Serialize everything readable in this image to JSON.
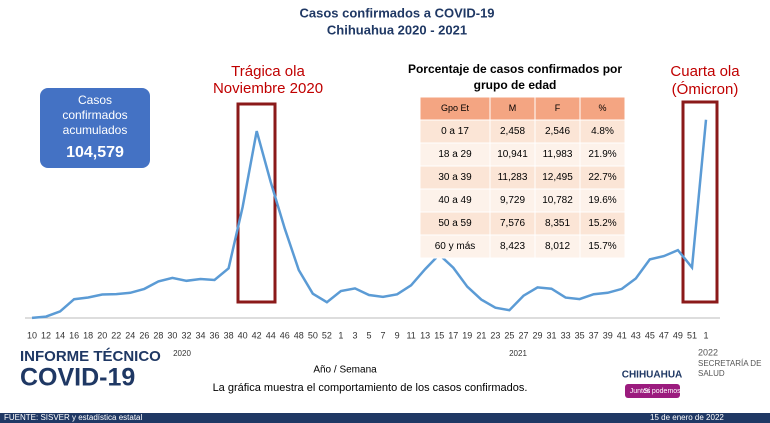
{
  "chart_data": {
    "type": "line",
    "title": "Casos confirmados a COVID-19",
    "subtitle": "Chihuahua 2020 - 2021",
    "x_label": "Año / Semana",
    "year_labels": [
      "2020",
      "2021"
    ],
    "categories": [
      "10",
      "12",
      "14",
      "16",
      "18",
      "20",
      "22",
      "24",
      "26",
      "28",
      "30",
      "32",
      "34",
      "36",
      "38",
      "40",
      "42",
      "44",
      "46",
      "48",
      "50",
      "52",
      "1",
      "3",
      "5",
      "7",
      "9",
      "11",
      "13",
      "15",
      "17",
      "19",
      "21",
      "23",
      "25",
      "27",
      "29",
      "31",
      "33",
      "35",
      "37",
      "39",
      "41",
      "43",
      "45",
      "47",
      "49",
      "51",
      "1"
    ],
    "series": [
      {
        "color": "#5b9bd5",
        "values": [
          2,
          36,
          170,
          485,
          528,
          604,
          615,
          650,
          750,
          941,
          1031,
          957,
          1003,
          979,
          1280,
          2855,
          4811,
          3500,
          2299,
          1233,
          625,
          408,
          694,
          762,
          593,
          542,
          611,
          842,
          1260,
          1633,
          1294,
          805,
          473,
          266,
          200,
          573,
          787,
          754,
          524,
          487,
          612,
          650,
          750,
          1016,
          1508,
          1594,
          1749,
          1300,
          5102
        ]
      }
    ],
    "ylim": [
      0,
      5200
    ],
    "annotations": [
      [
        "Trágica ola",
        "Noviembre 2020"
      ],
      [
        "Cuarta ola",
        "(Ómicron)"
      ]
    ]
  },
  "summary_box": {
    "label": [
      "Casos",
      "confirmados",
      "acumulados"
    ],
    "value": "104,579"
  },
  "table": {
    "title": [
      "Porcentaje de casos confirmados por",
      "grupo de edad"
    ],
    "header": [
      "Gpo Et",
      "M",
      "F",
      "%"
    ],
    "rows": [
      [
        "0 a 17",
        "2,458",
        "2,546",
        "4.8%"
      ],
      [
        "18 a 29",
        "10,941",
        "11,983",
        "21.9%"
      ],
      [
        "30 a 39",
        "11,283",
        "12,495",
        "22.7%"
      ],
      [
        "40 a 49",
        "9,729",
        "10,782",
        "19.6%"
      ],
      [
        "50 a 59",
        "7,576",
        "8,351",
        "15.2%"
      ],
      [
        "60 y más",
        "8,423",
        "8,012",
        "15.7%"
      ]
    ]
  },
  "footer": {
    "report": [
      "INFORME TÉCNICO",
      "COVID-19"
    ],
    "caption": "La gráfica muestra el comportamiento de los casos confirmados.",
    "state": "CHIHUAHUA",
    "motto": [
      "Juntos",
      "Sí podemos"
    ],
    "year": "2022",
    "agency": [
      "SECRETARÍA DE",
      "SALUD"
    ],
    "source": "FUENTE: SISVER y estadística estatal",
    "date": "15 de enero de 2022"
  }
}
